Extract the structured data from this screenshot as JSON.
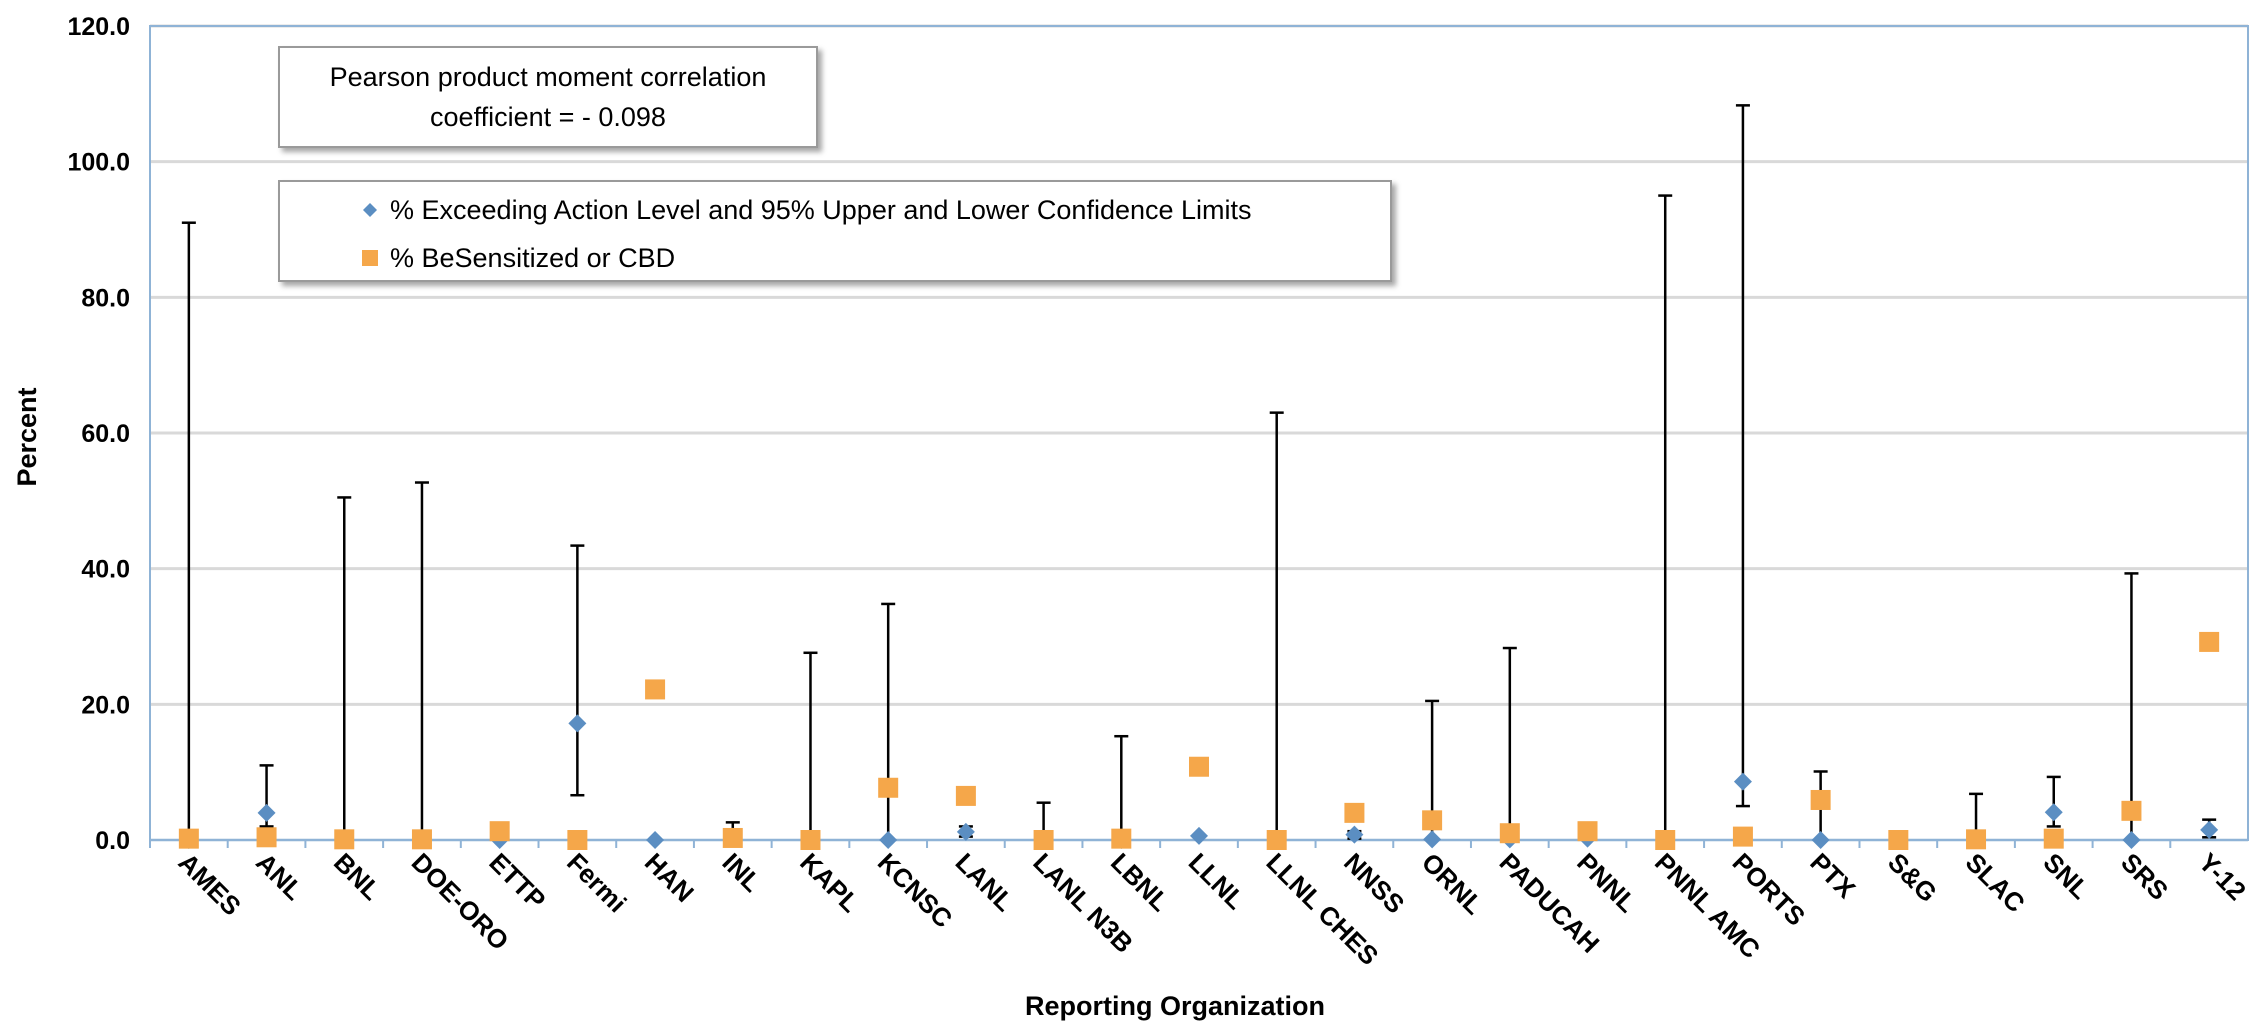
{
  "chart_data": {
    "type": "scatter",
    "title": "",
    "xlabel": "Reporting Organization",
    "ylabel": "Percent",
    "ylim": [
      0,
      120
    ],
    "y_ticks": [
      "0.0",
      "20.0",
      "40.0",
      "60.0",
      "80.0",
      "100.0",
      "120.0"
    ],
    "grid": true,
    "annotation": "Pearson product moment correlation\ncoefficient = - 0.098",
    "legend_position": "top-left",
    "categories": [
      "AMES",
      "ANL",
      "BNL",
      "DOE-ORO",
      "ETTP",
      "Fermi",
      "HAN",
      "INL",
      "KAPL",
      "KCNSC",
      "LANL",
      "LANL N3B",
      "LBNL",
      "LLNL",
      "LLNL CHES",
      "NNSS",
      "ORNL",
      "PADUCAH",
      "PNNL",
      "PNNL AMC",
      "PORTS",
      "PTX",
      "S&G",
      "SLAC",
      "SNL",
      "SRS",
      "Y-12"
    ],
    "series": [
      {
        "name": "% Exceeding Action Level and 95% Upper and Lower Confidence Limits",
        "marker": "diamond",
        "color": "#5b8ec2",
        "values": [
          0,
          4,
          0,
          0,
          0,
          17.2,
          0,
          0.5,
          0,
          0,
          1.2,
          0,
          0,
          0.6,
          0,
          0.8,
          0.1,
          0.1,
          0.2,
          0,
          8.6,
          0,
          0,
          0,
          4.1,
          0,
          1.5
        ],
        "upper": [
          91,
          11,
          50.5,
          52.7,
          0,
          43.4,
          0,
          2.6,
          27.6,
          34.8,
          2,
          5.5,
          15.3,
          0.6,
          63,
          1.3,
          20.5,
          28.3,
          0.2,
          95,
          108.3,
          10.1,
          0,
          6.8,
          9.3,
          39.3,
          3
        ],
        "lower": [
          0,
          2,
          0,
          0,
          0,
          6.6,
          0,
          0,
          0,
          0,
          0.5,
          0,
          0,
          0.6,
          0,
          0.2,
          0,
          0,
          0,
          0,
          5,
          0,
          0,
          0,
          2,
          0,
          0.4
        ]
      },
      {
        "name": "% BeSensitized or CBD",
        "marker": "square",
        "color": "#f5a74a",
        "values": [
          0.2,
          0.4,
          0.1,
          0.1,
          1.3,
          0,
          22.2,
          0.3,
          0,
          7.7,
          6.5,
          0,
          0.2,
          10.8,
          0,
          4,
          2.9,
          1,
          1.3,
          0,
          0.5,
          5.9,
          0,
          0.1,
          0.2,
          4.3,
          29.2
        ]
      }
    ]
  }
}
